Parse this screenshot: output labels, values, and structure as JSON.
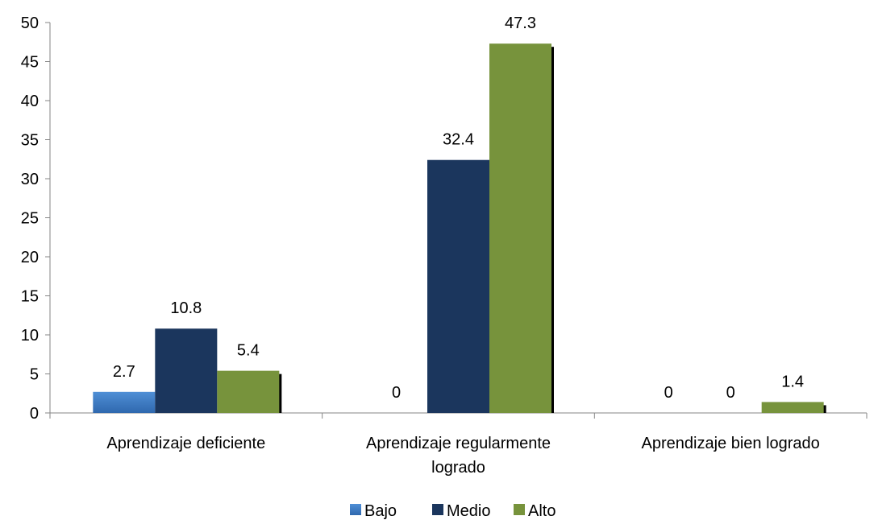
{
  "chart_data": {
    "type": "bar",
    "title": "",
    "xlabel": "",
    "ylabel": "",
    "ylim": [
      0,
      50
    ],
    "yticks": [
      0,
      5,
      10,
      15,
      20,
      25,
      30,
      35,
      40,
      45,
      50
    ],
    "grid": false,
    "legend_position": "bottom",
    "categories": [
      [
        "Aprendizaje deficiente"
      ],
      [
        "Aprendizaje regularmente",
        "logrado"
      ],
      [
        "Aprendizaje bien logrado"
      ]
    ],
    "series": [
      {
        "name": "Bajo",
        "color": "#3A78C4",
        "values": [
          2.7,
          0,
          0
        ]
      },
      {
        "name": "Medio",
        "color": "#1B365D",
        "values": [
          10.8,
          32.4,
          0
        ]
      },
      {
        "name": "Alto",
        "color": "#77933C",
        "values": [
          5.4,
          47.3,
          1.4
        ]
      }
    ],
    "data_labels": [
      [
        "2.7",
        "0",
        "0"
      ],
      [
        "10.8",
        "32.4",
        "0"
      ],
      [
        "5.4",
        "47.3",
        "1.4"
      ]
    ]
  }
}
